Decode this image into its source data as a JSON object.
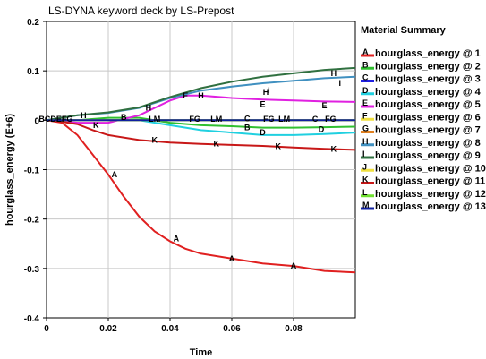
{
  "chart_data": {
    "type": "line",
    "title": "LS-DYNA keyword deck by LS-Prepost",
    "xlabel": "Time",
    "ylabel": "hourglass_energy (E+6)",
    "xlim": [
      0,
      0.1
    ],
    "ylim": [
      -0.4,
      0.2
    ],
    "xticks": [
      0,
      0.02,
      0.04,
      0.06,
      0.08
    ],
    "xtick_labels": [
      "0",
      "0.02",
      "0.04",
      "0.06",
      "0.08"
    ],
    "yticks": [
      0.2,
      0.1,
      0,
      -0.1,
      -0.2,
      -0.3,
      -0.4
    ],
    "ytick_labels": [
      "0.2",
      "0.1",
      "0",
      "-0.1",
      "-0.2",
      "-0.3",
      "-0.4"
    ],
    "grid": true,
    "legend_title": "Material Summary",
    "legend_position": "right",
    "series": [
      {
        "marker": "A",
        "name": "hourglass_energy @ 1",
        "color": "#e02020",
        "x": [
          0,
          0.005,
          0.01,
          0.015,
          0.02,
          0.025,
          0.03,
          0.035,
          0.04,
          0.045,
          0.05,
          0.06,
          0.07,
          0.08,
          0.09,
          0.1
        ],
        "y": [
          0,
          -0.005,
          -0.03,
          -0.07,
          -0.11,
          -0.155,
          -0.195,
          -0.225,
          -0.245,
          -0.26,
          -0.27,
          -0.28,
          -0.29,
          -0.295,
          -0.305,
          -0.308
        ]
      },
      {
        "marker": "B",
        "name": "hourglass_energy @ 2",
        "color": "#30c030",
        "x": [
          0,
          0.01,
          0.02,
          0.03,
          0.04,
          0.05,
          0.06,
          0.07,
          0.08,
          0.09,
          0.1
        ],
        "y": [
          0,
          0,
          0.005,
          0.005,
          -0.005,
          -0.01,
          -0.012,
          -0.015,
          -0.015,
          -0.014,
          -0.013
        ]
      },
      {
        "marker": "C",
        "name": "hourglass_energy @ 3",
        "color": "#2020e0",
        "x": [
          0,
          0.01,
          0.02,
          0.03,
          0.04,
          0.05,
          0.06,
          0.07,
          0.08,
          0.09,
          0.1
        ],
        "y": [
          0,
          0,
          0,
          0,
          0,
          0,
          0,
          0,
          0,
          0,
          0
        ]
      },
      {
        "marker": "D",
        "name": "hourglass_energy @ 4",
        "color": "#20d0e0",
        "x": [
          0,
          0.01,
          0.02,
          0.03,
          0.04,
          0.05,
          0.06,
          0.07,
          0.08,
          0.09,
          0.1
        ],
        "y": [
          0,
          0,
          0,
          0,
          -0.01,
          -0.02,
          -0.025,
          -0.03,
          -0.03,
          -0.028,
          -0.025
        ]
      },
      {
        "marker": "E",
        "name": "hourglass_energy @ 5",
        "color": "#e020e0",
        "x": [
          0,
          0.01,
          0.02,
          0.03,
          0.04,
          0.045,
          0.05,
          0.06,
          0.07,
          0.08,
          0.09,
          0.1
        ],
        "y": [
          0,
          -0.005,
          -0.005,
          0.01,
          0.04,
          0.05,
          0.05,
          0.045,
          0.042,
          0.04,
          0.038,
          0.037
        ]
      },
      {
        "marker": "F",
        "name": "hourglass_energy @ 6",
        "color": "#f0e040",
        "x": [
          0,
          0.02,
          0.04,
          0.06,
          0.08,
          0.1
        ],
        "y": [
          0,
          0,
          0,
          0,
          0,
          0
        ]
      },
      {
        "marker": "G",
        "name": "hourglass_energy @ 7",
        "color": "#e08020",
        "x": [
          0,
          0.02,
          0.04,
          0.06,
          0.08,
          0.1
        ],
        "y": [
          0,
          0,
          0,
          0,
          0,
          0
        ]
      },
      {
        "marker": "H",
        "name": "hourglass_energy @ 8",
        "color": "#4090c0",
        "x": [
          0,
          0.01,
          0.02,
          0.03,
          0.04,
          0.05,
          0.06,
          0.07,
          0.08,
          0.09,
          0.1
        ],
        "y": [
          0,
          0.01,
          0.015,
          0.025,
          0.045,
          0.06,
          0.068,
          0.075,
          0.08,
          0.085,
          0.088
        ]
      },
      {
        "marker": "I",
        "name": "hourglass_energy @ 9",
        "color": "#307040",
        "x": [
          0,
          0.01,
          0.02,
          0.03,
          0.04,
          0.05,
          0.06,
          0.07,
          0.08,
          0.09,
          0.1
        ],
        "y": [
          0,
          0.01,
          0.016,
          0.026,
          0.047,
          0.065,
          0.078,
          0.088,
          0.095,
          0.102,
          0.106
        ]
      },
      {
        "marker": "J",
        "name": "hourglass_energy @ 10",
        "color": "#f0e040",
        "x": [
          0,
          0.02,
          0.04,
          0.06,
          0.08,
          0.1
        ],
        "y": [
          0,
          0,
          0,
          0,
          0,
          0
        ]
      },
      {
        "marker": "K",
        "name": "hourglass_energy @ 11",
        "color": "#c81818",
        "x": [
          0,
          0.005,
          0.01,
          0.015,
          0.02,
          0.03,
          0.04,
          0.05,
          0.06,
          0.07,
          0.08,
          0.09,
          0.1
        ],
        "y": [
          0,
          -0.003,
          -0.008,
          -0.02,
          -0.03,
          -0.04,
          -0.045,
          -0.048,
          -0.05,
          -0.052,
          -0.055,
          -0.058,
          -0.06
        ]
      },
      {
        "marker": "L",
        "name": "hourglass_energy @ 12",
        "color": "#70e030",
        "x": [
          0,
          0.02,
          0.04,
          0.06,
          0.08,
          0.1
        ],
        "y": [
          0,
          0,
          0,
          0,
          0,
          0
        ]
      },
      {
        "marker": "M",
        "name": "hourglass_energy @ 13",
        "color": "#1020a0",
        "x": [
          0,
          0.02,
          0.04,
          0.06,
          0.08,
          0.1
        ],
        "y": [
          0,
          0,
          0,
          0,
          0,
          0
        ]
      }
    ],
    "annotations": [
      {
        "text": "A",
        "x": 0.022,
        "y": -0.11,
        "color": "#e02020"
      },
      {
        "text": "A",
        "x": 0.042,
        "y": -0.24,
        "color": "#e02020"
      },
      {
        "text": "A",
        "x": 0.06,
        "y": -0.28,
        "color": "#e02020"
      },
      {
        "text": "A",
        "x": 0.08,
        "y": -0.295,
        "color": "#e02020"
      },
      {
        "text": "K",
        "x": 0.016,
        "y": -0.01,
        "color": "#c81818"
      },
      {
        "text": "K",
        "x": 0.035,
        "y": -0.04,
        "color": "#c81818"
      },
      {
        "text": "K",
        "x": 0.055,
        "y": -0.047,
        "color": "#c81818"
      },
      {
        "text": "K",
        "x": 0.075,
        "y": -0.053,
        "color": "#c81818"
      },
      {
        "text": "K",
        "x": 0.093,
        "y": -0.058,
        "color": "#c81818"
      },
      {
        "text": "H",
        "x": 0.012,
        "y": 0.01,
        "color": "#4090c0"
      },
      {
        "text": "H",
        "x": 0.033,
        "y": 0.025,
        "color": "#4090c0"
      },
      {
        "text": "H",
        "x": 0.05,
        "y": 0.05,
        "color": "#4090c0"
      },
      {
        "text": "H",
        "x": 0.071,
        "y": 0.057,
        "color": "#4090c0"
      },
      {
        "text": "H",
        "x": 0.093,
        "y": 0.095,
        "color": "#4090c0"
      },
      {
        "text": "I",
        "x": 0.072,
        "y": 0.06,
        "color": "#307040"
      },
      {
        "text": "I",
        "x": 0.095,
        "y": 0.075,
        "color": "#307040"
      },
      {
        "text": "E",
        "x": 0.045,
        "y": 0.05,
        "color": "#e020e0"
      },
      {
        "text": "E",
        "x": 0.07,
        "y": 0.032,
        "color": "#e020e0"
      },
      {
        "text": "E",
        "x": 0.09,
        "y": 0.03,
        "color": "#e020e0"
      },
      {
        "text": "B",
        "x": 0.025,
        "y": 0.006,
        "color": "#30c030"
      },
      {
        "text": "B",
        "x": 0.065,
        "y": -0.015,
        "color": "#30c030"
      },
      {
        "text": "D",
        "x": 0.07,
        "y": -0.025,
        "color": "#20d0e0"
      },
      {
        "text": "D",
        "x": 0.089,
        "y": -0.018,
        "color": "#20d0e0"
      },
      {
        "text": "C",
        "x": 0.065,
        "y": 0.003,
        "color": "#2020e0"
      },
      {
        "text": "C",
        "x": 0.087,
        "y": 0.002,
        "color": "#2020e0"
      },
      {
        "text": "FG",
        "x": 0.048,
        "y": 0.002,
        "color": "#e08020"
      },
      {
        "text": "FG",
        "x": 0.072,
        "y": 0.002,
        "color": "#e08020"
      },
      {
        "text": "FG",
        "x": 0.092,
        "y": 0.002,
        "color": "#e08020"
      },
      {
        "text": "LM",
        "x": 0.035,
        "y": 0.002,
        "color": "#1020a0"
      },
      {
        "text": "LM",
        "x": 0.055,
        "y": 0.002,
        "color": "#1020a0"
      },
      {
        "text": "LM",
        "x": 0.077,
        "y": 0.002,
        "color": "#1020a0"
      },
      {
        "text": "BCDEFG",
        "x": 0.003,
        "y": 0.002,
        "color": "#000000"
      }
    ]
  }
}
